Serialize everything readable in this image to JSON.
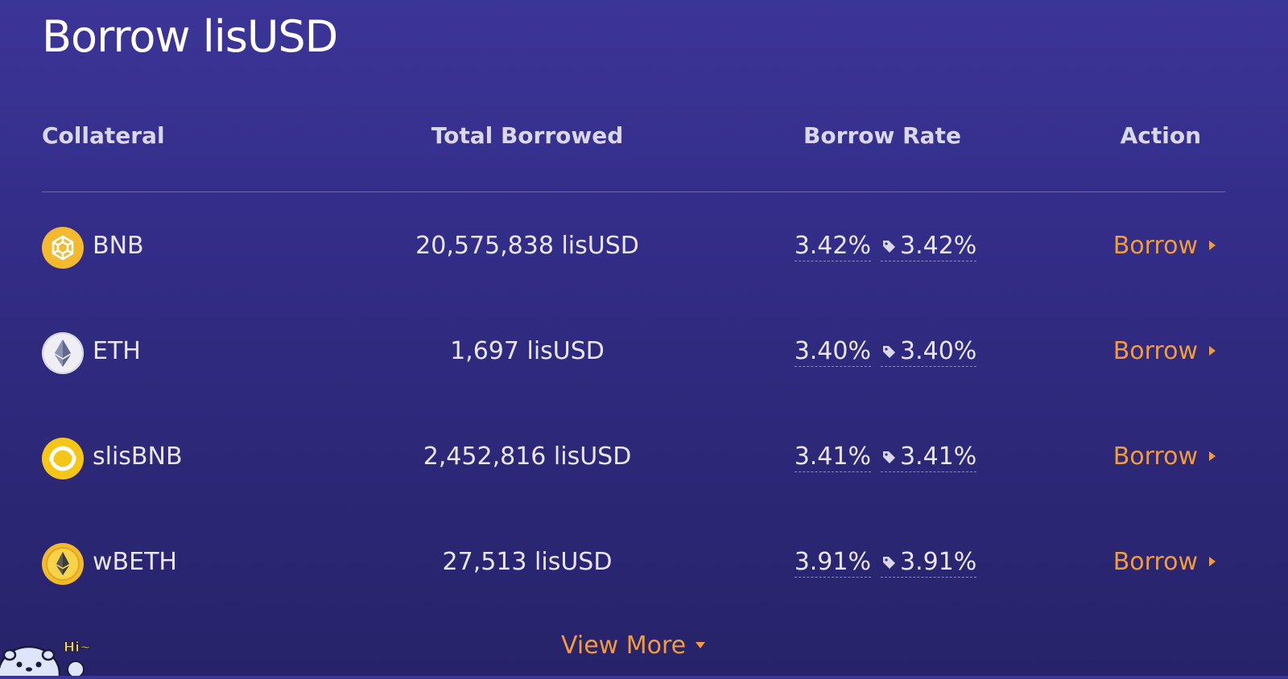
{
  "page_title": "Borrow lisUSD",
  "table": {
    "headers": {
      "collateral": "Collateral",
      "total_borrowed": "Total Borrowed",
      "borrow_rate": "Borrow Rate",
      "action": "Action"
    },
    "rows": [
      {
        "symbol": "BNB",
        "icon": "bnb-icon",
        "total": "20,575,838 lisUSD",
        "rate": "3.42%",
        "tagged_rate": "3.42%",
        "action": "Borrow"
      },
      {
        "symbol": "ETH",
        "icon": "eth-icon",
        "total": "1,697 lisUSD",
        "rate": "3.40%",
        "tagged_rate": "3.40%",
        "action": "Borrow"
      },
      {
        "symbol": "slisBNB",
        "icon": "slisbnb-icon",
        "total": "2,452,816 lisUSD",
        "rate": "3.41%",
        "tagged_rate": "3.41%",
        "action": "Borrow"
      },
      {
        "symbol": "wBETH",
        "icon": "wbeth-icon",
        "total": "27,513 lisUSD",
        "rate": "3.91%",
        "tagged_rate": "3.91%",
        "action": "Borrow"
      }
    ]
  },
  "view_more": "View More",
  "mascot_text": "Hi~",
  "colors": {
    "accent": "#f39a3c",
    "bnb_yellow": "#f3ba2f",
    "background_top": "#3c3598",
    "background_bottom": "#27236a"
  }
}
